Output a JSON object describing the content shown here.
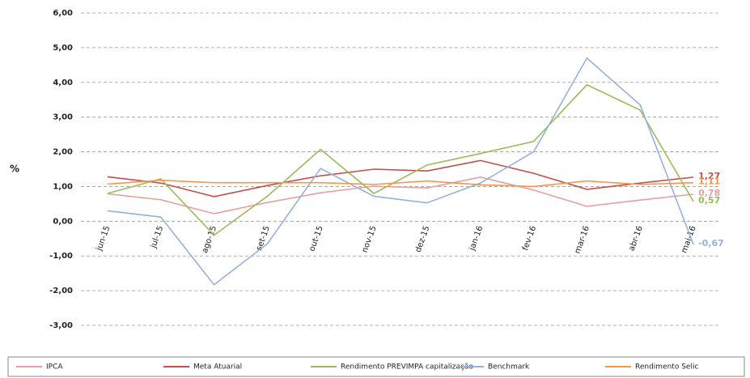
{
  "chart_data": {
    "type": "line",
    "y_label": "%",
    "categories": [
      "jun-15",
      "jul-15",
      "ago-15",
      "set-15",
      "out-15",
      "nov-15",
      "dez-15",
      "jan-16",
      "fev-16",
      "mar-16",
      "abr-16",
      "mai-16"
    ],
    "ylim": [
      -3,
      6
    ],
    "yticks": [
      {
        "value": -3,
        "label": "-3,00"
      },
      {
        "value": -2,
        "label": "-2,00"
      },
      {
        "value": -1,
        "label": "-1,00"
      },
      {
        "value": 0,
        "label": "0,00"
      },
      {
        "value": 1,
        "label": "1,00"
      },
      {
        "value": 2,
        "label": "2,00"
      },
      {
        "value": 3,
        "label": "3,00"
      },
      {
        "value": 4,
        "label": "4,00"
      },
      {
        "value": 5,
        "label": "5,00"
      },
      {
        "value": 6,
        "label": "6,00"
      }
    ],
    "grid": true,
    "series": [
      {
        "name": "IPCA",
        "color": "#e6a0a0",
        "values": [
          0.79,
          0.62,
          0.22,
          0.54,
          0.82,
          1.01,
          0.96,
          1.27,
          0.9,
          0.43,
          0.61,
          0.78
        ],
        "value_labels": [
          null,
          null,
          null,
          null,
          null,
          null,
          null,
          null,
          null,
          null,
          null,
          "0,78"
        ]
      },
      {
        "name": "Meta Atuarial",
        "color": "#c0504d",
        "values": [
          1.28,
          1.1,
          0.71,
          1.03,
          1.31,
          1.5,
          1.45,
          1.75,
          1.38,
          0.92,
          1.1,
          1.27
        ],
        "value_labels": [
          null,
          null,
          null,
          null,
          null,
          null,
          null,
          null,
          null,
          null,
          null,
          "1,27"
        ]
      },
      {
        "name": "Rendimento PREVIMPA capitalização",
        "color": "#9bbb59",
        "values": [
          0.8,
          1.22,
          -0.4,
          0.72,
          2.07,
          0.8,
          1.62,
          1.95,
          2.3,
          3.93,
          3.2,
          0.57
        ],
        "value_labels": [
          null,
          null,
          null,
          null,
          null,
          null,
          null,
          null,
          null,
          null,
          null,
          "0,57"
        ]
      },
      {
        "name": "Benchmark",
        "color": "#95b3d7",
        "values": [
          0.3,
          0.12,
          -1.83,
          -0.65,
          1.52,
          0.72,
          0.53,
          1.1,
          2.0,
          4.7,
          3.35,
          -0.67
        ],
        "value_labels": [
          null,
          null,
          null,
          null,
          null,
          null,
          null,
          null,
          null,
          null,
          null,
          "-0,67"
        ]
      },
      {
        "name": "Rendimento Selic",
        "color": "#f79646",
        "values": [
          1.07,
          1.18,
          1.11,
          1.11,
          1.11,
          1.06,
          1.16,
          1.05,
          1.0,
          1.16,
          1.06,
          1.11
        ],
        "value_labels": [
          null,
          null,
          null,
          null,
          null,
          null,
          null,
          null,
          null,
          null,
          null,
          "1,11"
        ]
      }
    ]
  }
}
